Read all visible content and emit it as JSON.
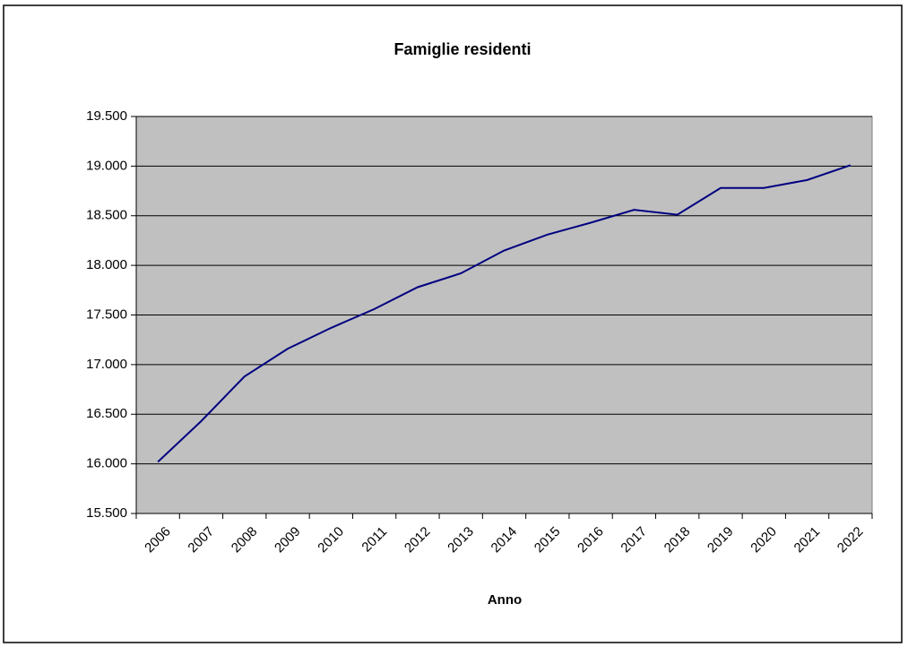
{
  "chart_data": {
    "type": "line",
    "title": "Famiglie residenti",
    "x_label": "Anno",
    "categories": [
      "2006",
      "2007",
      "2008",
      "2009",
      "2010",
      "2011",
      "2012",
      "2013",
      "2014",
      "2015",
      "2016",
      "2017",
      "2018",
      "2019",
      "2020",
      "2021",
      "2022"
    ],
    "values": [
      16020,
      16430,
      16880,
      17160,
      17370,
      17560,
      17780,
      17920,
      18150,
      18310,
      18430,
      18560,
      18510,
      18780,
      18780,
      18860,
      19010
    ],
    "color": "#000080",
    "ylim": [
      15500,
      19500
    ],
    "yticks": [
      {
        "value": 15500,
        "label": "15.500"
      },
      {
        "value": 16000,
        "label": "16.000"
      },
      {
        "value": 16500,
        "label": "16.500"
      },
      {
        "value": 17000,
        "label": "17.000"
      },
      {
        "value": 17500,
        "label": "17.500"
      },
      {
        "value": 18000,
        "label": "18.000"
      },
      {
        "value": 18500,
        "label": "18.500"
      },
      {
        "value": 19000,
        "label": "19.000"
      },
      {
        "value": 19500,
        "label": "19.500"
      }
    ],
    "grid": true,
    "plot_background": "#c0c0c0"
  }
}
